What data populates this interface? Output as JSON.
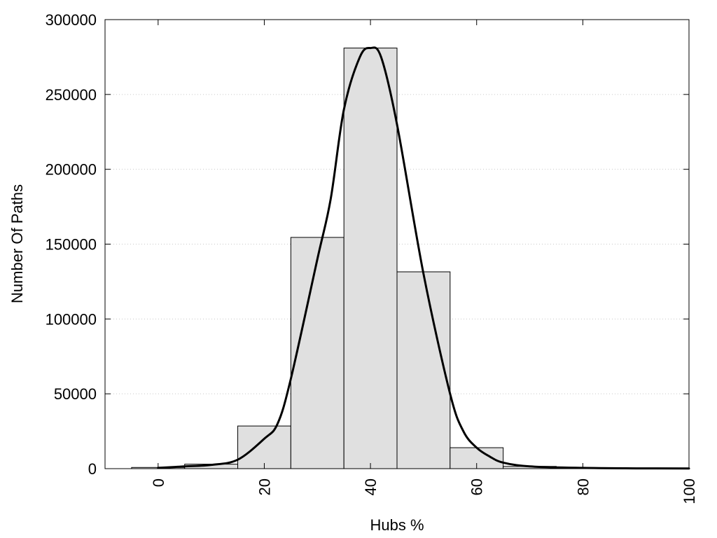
{
  "chart_data": {
    "type": "bar",
    "title": "",
    "xlabel": "Hubs %",
    "ylabel": "Number Of Paths",
    "xlim": [
      -10,
      100
    ],
    "ylim": [
      0,
      300000
    ],
    "grid": true,
    "x_ticks": [
      "0",
      "20",
      "40",
      "60",
      "80",
      "100"
    ],
    "y_ticks": [
      "0",
      "50000",
      "100000",
      "150000",
      "200000",
      "250000",
      "300000"
    ],
    "bar_color": "#e0e0e0",
    "bar_edge_color": "#000000",
    "bars": [
      {
        "x": 0,
        "value": 800
      },
      {
        "x": 10,
        "value": 3000
      },
      {
        "x": 20,
        "value": 28500
      },
      {
        "x": 30,
        "value": 154500
      },
      {
        "x": 40,
        "value": 281000
      },
      {
        "x": 50,
        "value": 131500
      },
      {
        "x": 60,
        "value": 14000
      },
      {
        "x": 70,
        "value": 1500
      },
      {
        "x": 80,
        "value": 500
      },
      {
        "x": 90,
        "value": 300
      },
      {
        "x": 100,
        "value": 200
      }
    ],
    "curve_color": "#000000",
    "curve": [
      {
        "x": 0,
        "y": 500
      },
      {
        "x": 5,
        "y": 1500
      },
      {
        "x": 10,
        "y": 2500
      },
      {
        "x": 15,
        "y": 6000
      },
      {
        "x": 20,
        "y": 20000
      },
      {
        "x": 22.5,
        "y": 30000
      },
      {
        "x": 25,
        "y": 60000
      },
      {
        "x": 30,
        "y": 140000
      },
      {
        "x": 32.5,
        "y": 180000
      },
      {
        "x": 35,
        "y": 240000
      },
      {
        "x": 38,
        "y": 275000
      },
      {
        "x": 40,
        "y": 281000
      },
      {
        "x": 42,
        "y": 275000
      },
      {
        "x": 45,
        "y": 230000
      },
      {
        "x": 50,
        "y": 130000
      },
      {
        "x": 55,
        "y": 50000
      },
      {
        "x": 57.5,
        "y": 25000
      },
      {
        "x": 60,
        "y": 14000
      },
      {
        "x": 62.5,
        "y": 8000
      },
      {
        "x": 65,
        "y": 4000
      },
      {
        "x": 70,
        "y": 1500
      },
      {
        "x": 80,
        "y": 500
      },
      {
        "x": 90,
        "y": 200
      },
      {
        "x": 100,
        "y": 100
      }
    ]
  }
}
